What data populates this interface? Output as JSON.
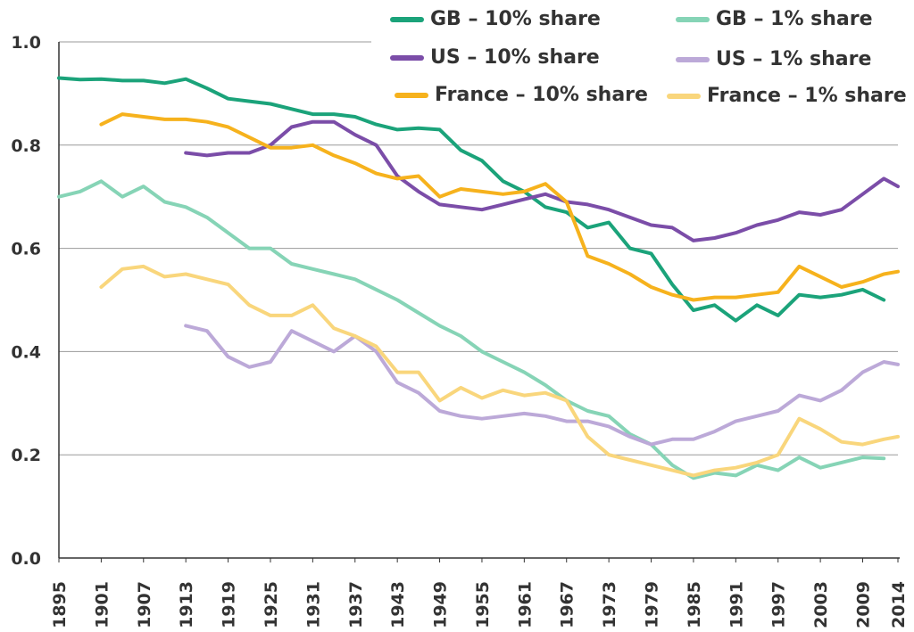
{
  "chart_data": {
    "type": "line",
    "x": [
      1895,
      1898,
      1901,
      1904,
      1907,
      1910,
      1913,
      1916,
      1919,
      1922,
      1925,
      1928,
      1931,
      1934,
      1937,
      1940,
      1943,
      1946,
      1949,
      1952,
      1955,
      1958,
      1961,
      1964,
      1967,
      1970,
      1973,
      1976,
      1979,
      1982,
      1985,
      1988,
      1991,
      1994,
      1997,
      2000,
      2003,
      2006,
      2009,
      2012,
      2014
    ],
    "series": [
      {
        "name": "GB – 10% share",
        "color": "#1ba37a",
        "values": [
          0.93,
          0.927,
          0.928,
          0.925,
          0.925,
          0.92,
          0.928,
          0.91,
          0.89,
          0.885,
          0.88,
          0.87,
          0.86,
          0.86,
          0.855,
          0.84,
          0.83,
          0.833,
          0.83,
          0.79,
          0.77,
          0.73,
          0.71,
          0.68,
          0.67,
          0.64,
          0.65,
          0.6,
          0.59,
          0.53,
          0.48,
          0.49,
          0.46,
          0.49,
          0.47,
          0.51,
          0.505,
          0.51,
          0.52,
          0.5,
          null
        ]
      },
      {
        "name": "GB – 1% share",
        "color": "#86d4b6",
        "values": [
          0.7,
          0.71,
          0.73,
          0.7,
          0.72,
          0.69,
          0.68,
          0.66,
          0.63,
          0.6,
          0.6,
          0.57,
          0.56,
          0.55,
          0.54,
          0.52,
          0.5,
          0.475,
          0.45,
          0.43,
          0.4,
          0.38,
          0.36,
          0.335,
          0.305,
          0.285,
          0.275,
          0.24,
          0.22,
          0.18,
          0.155,
          0.165,
          0.16,
          0.18,
          0.17,
          0.195,
          0.175,
          0.185,
          0.195,
          0.193,
          null
        ]
      },
      {
        "name": "US – 10% share",
        "color": "#7b4da8",
        "values": [
          null,
          null,
          null,
          null,
          null,
          null,
          0.785,
          0.78,
          0.785,
          0.785,
          0.8,
          0.835,
          0.845,
          0.845,
          0.82,
          0.8,
          0.74,
          0.71,
          0.685,
          0.68,
          0.675,
          0.685,
          0.695,
          0.705,
          0.69,
          0.685,
          0.675,
          0.66,
          0.645,
          0.64,
          0.615,
          0.62,
          0.63,
          0.645,
          0.655,
          0.67,
          0.665,
          0.675,
          0.705,
          0.735,
          0.72
        ]
      },
      {
        "name": "US – 1% share",
        "color": "#bca9d8",
        "values": [
          null,
          null,
          null,
          null,
          null,
          null,
          0.45,
          0.44,
          0.39,
          0.37,
          0.38,
          0.44,
          0.42,
          0.4,
          0.43,
          0.4,
          0.34,
          0.32,
          0.285,
          0.275,
          0.27,
          0.275,
          0.28,
          0.275,
          0.265,
          0.265,
          0.255,
          0.235,
          0.22,
          0.23,
          0.23,
          0.245,
          0.265,
          0.275,
          0.285,
          0.315,
          0.305,
          0.325,
          0.36,
          0.38,
          0.375
        ]
      },
      {
        "name": "France – 10% share",
        "color": "#f6b21d",
        "values": [
          null,
          null,
          0.84,
          0.86,
          0.855,
          0.85,
          0.85,
          0.845,
          0.835,
          0.815,
          0.795,
          0.795,
          0.8,
          0.78,
          0.765,
          0.745,
          0.735,
          0.74,
          0.7,
          0.715,
          0.71,
          0.705,
          0.71,
          0.725,
          0.69,
          0.585,
          0.57,
          0.55,
          0.525,
          0.51,
          0.5,
          0.505,
          0.505,
          0.51,
          0.515,
          0.565,
          0.545,
          0.525,
          0.535,
          0.55,
          0.555
        ]
      },
      {
        "name": "France – 1% share",
        "color": "#f9d67c",
        "values": [
          null,
          null,
          0.525,
          0.56,
          0.565,
          0.545,
          0.55,
          0.54,
          0.53,
          0.49,
          0.47,
          0.47,
          0.49,
          0.445,
          0.43,
          0.41,
          0.36,
          0.36,
          0.305,
          0.33,
          0.31,
          0.325,
          0.315,
          0.32,
          0.305,
          0.235,
          0.2,
          0.19,
          0.18,
          0.17,
          0.16,
          0.17,
          0.175,
          0.185,
          0.2,
          0.27,
          0.25,
          0.225,
          0.22,
          0.23,
          0.235
        ]
      }
    ],
    "xlim": [
      1895,
      2014
    ],
    "xticks": [
      1895,
      1901,
      1907,
      1913,
      1919,
      1925,
      1931,
      1937,
      1943,
      1949,
      1955,
      1961,
      1967,
      1973,
      1979,
      1985,
      1991,
      1997,
      2003,
      2009,
      2014
    ],
    "ylim": [
      0,
      1
    ],
    "yticks": [
      {
        "value": 0,
        "label": "0.0"
      },
      0.2,
      0.4,
      0.6,
      0.8,
      {
        "value": 1,
        "label": "1.0"
      }
    ],
    "grid": true
  }
}
